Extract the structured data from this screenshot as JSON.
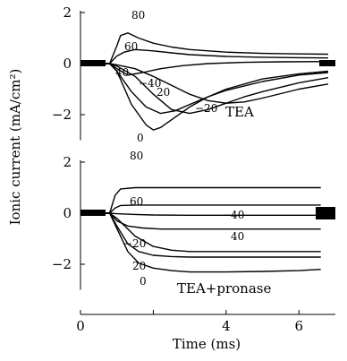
{
  "figure": {
    "ylabel": "Ionic current (mA/cm²)",
    "xlabel": "Time (ms)",
    "xticks": [
      "0",
      "4",
      "6"
    ]
  },
  "chart_data": [
    {
      "type": "line",
      "name": "TEA",
      "xlim": [
        0,
        7
      ],
      "ylim": [
        -3,
        2
      ],
      "yticks": [
        "2",
        "0",
        "−2"
      ],
      "series": [
        {
          "name": "80",
          "x": [
            0.2,
            0.8,
            1.0,
            1.1,
            1.3,
            1.6,
            2.0,
            2.5,
            3.0,
            4.0,
            5.0,
            6.0,
            6.8
          ],
          "y": [
            0,
            0,
            0.7,
            1.1,
            1.2,
            1.0,
            0.8,
            0.65,
            0.55,
            0.45,
            0.4,
            0.38,
            0.37
          ]
        },
        {
          "name": "60",
          "x": [
            0.2,
            0.8,
            1.0,
            1.2,
            1.5,
            2.0,
            2.5,
            3.0,
            4.0,
            5.0,
            6.0,
            6.8
          ],
          "y": [
            0,
            0,
            0.3,
            0.45,
            0.55,
            0.5,
            0.42,
            0.35,
            0.28,
            0.25,
            0.23,
            0.22
          ]
        },
        {
          "name": "40",
          "x": [
            0.2,
            0.8,
            1.0,
            1.3,
            1.7,
            2.2,
            2.8,
            3.5,
            4.5,
            5.5,
            6.8
          ],
          "y": [
            0,
            0,
            -0.2,
            -0.45,
            -0.35,
            -0.2,
            -0.08,
            0.0,
            0.05,
            0.07,
            0.08
          ]
        },
        {
          "name": "−40",
          "x": [
            0.2,
            0.8,
            1.0,
            1.5,
            2.0,
            2.5,
            3.0,
            3.5,
            4.0,
            4.5,
            5.0,
            6.0,
            6.8
          ],
          "y": [
            0,
            0,
            -0.05,
            -0.2,
            -0.5,
            -0.85,
            -1.2,
            -1.45,
            -1.55,
            -1.5,
            -1.35,
            -1.0,
            -0.8
          ]
        },
        {
          "name": "20",
          "x": [
            0.2,
            0.8,
            1.0,
            1.4,
            1.8,
            2.2,
            2.6,
            3.0,
            3.5,
            4.0,
            5.0,
            6.0,
            6.8
          ],
          "y": [
            0,
            0,
            -0.3,
            -1.1,
            -1.7,
            -1.95,
            -1.85,
            -1.6,
            -1.3,
            -1.05,
            -0.7,
            -0.45,
            -0.35
          ]
        },
        {
          "name": "−20",
          "x": [
            0.2,
            0.8,
            1.0,
            1.5,
            2.0,
            2.5,
            3.0,
            3.5,
            4.0,
            4.5,
            5.0,
            6.0,
            6.8
          ],
          "y": [
            0,
            0,
            -0.1,
            -0.5,
            -1.2,
            -1.8,
            -1.95,
            -1.8,
            -1.55,
            -1.3,
            -1.1,
            -0.75,
            -0.55
          ]
        },
        {
          "name": "0",
          "x": [
            0.2,
            0.8,
            1.0,
            1.4,
            1.8,
            2.0,
            2.2,
            2.5,
            3.0,
            3.5,
            4.0,
            5.0,
            6.0,
            6.8
          ],
          "y": [
            0,
            0,
            -0.3,
            -1.6,
            -2.4,
            -2.6,
            -2.5,
            -2.2,
            -1.7,
            -1.3,
            -1.0,
            -0.6,
            -0.4,
            -0.3
          ]
        }
      ]
    },
    {
      "type": "line",
      "name": "TEA+pronase",
      "xlim": [
        0,
        7
      ],
      "ylim": [
        -3,
        2
      ],
      "yticks": [
        "2",
        "0",
        "−2"
      ],
      "series": [
        {
          "name": "80",
          "x": [
            0.2,
            0.8,
            0.95,
            1.1,
            1.5,
            2.0,
            3.0,
            4.0,
            5.0,
            6.0,
            6.6
          ],
          "y": [
            0,
            0,
            0.7,
            0.95,
            1.0,
            1.0,
            1.0,
            1.0,
            1.0,
            1.0,
            1.0
          ]
        },
        {
          "name": "60",
          "x": [
            0.2,
            0.8,
            0.95,
            1.1,
            1.5,
            2.0,
            3.0,
            4.0,
            5.0,
            6.0,
            6.6
          ],
          "y": [
            0,
            0,
            0.2,
            0.3,
            0.32,
            0.32,
            0.32,
            0.32,
            0.32,
            0.32,
            0.32
          ]
        },
        {
          "name": "−40",
          "x": [
            0.2,
            0.8,
            1.0,
            1.5,
            2.0,
            3.0,
            4.0,
            5.0,
            6.0,
            6.6
          ],
          "y": [
            0,
            0,
            -0.02,
            -0.05,
            -0.07,
            -0.08,
            -0.08,
            -0.08,
            -0.08,
            -0.08
          ]
        },
        {
          "name": "40",
          "x": [
            0.2,
            0.8,
            1.0,
            1.3,
            1.7,
            2.2,
            3.0,
            4.0,
            5.0,
            6.0,
            6.6
          ],
          "y": [
            0,
            0,
            -0.3,
            -0.5,
            -0.58,
            -0.62,
            -0.62,
            -0.62,
            -0.62,
            -0.62,
            -0.62
          ]
        },
        {
          "name": "−20",
          "x": [
            0.2,
            0.8,
            1.0,
            1.5,
            2.0,
            2.5,
            3.0,
            4.0,
            5.0,
            6.0,
            6.6
          ],
          "y": [
            0,
            0,
            -0.2,
            -0.9,
            -1.3,
            -1.45,
            -1.5,
            -1.5,
            -1.5,
            -1.5,
            -1.5
          ]
        },
        {
          "name": "20",
          "x": [
            0.2,
            0.8,
            1.0,
            1.3,
            1.6,
            2.0,
            2.5,
            3.0,
            4.0,
            5.0,
            6.0,
            6.6
          ],
          "y": [
            0,
            0,
            -0.5,
            -1.2,
            -1.5,
            -1.65,
            -1.7,
            -1.72,
            -1.72,
            -1.72,
            -1.72,
            -1.72
          ]
        },
        {
          "name": "0",
          "x": [
            0.2,
            0.8,
            1.0,
            1.3,
            1.6,
            2.0,
            2.5,
            3.0,
            4.0,
            5.0,
            6.0,
            6.6
          ],
          "y": [
            0,
            0,
            -0.6,
            -1.5,
            -1.95,
            -2.15,
            -2.25,
            -2.3,
            -2.3,
            -2.28,
            -2.25,
            -2.2
          ]
        }
      ]
    }
  ]
}
